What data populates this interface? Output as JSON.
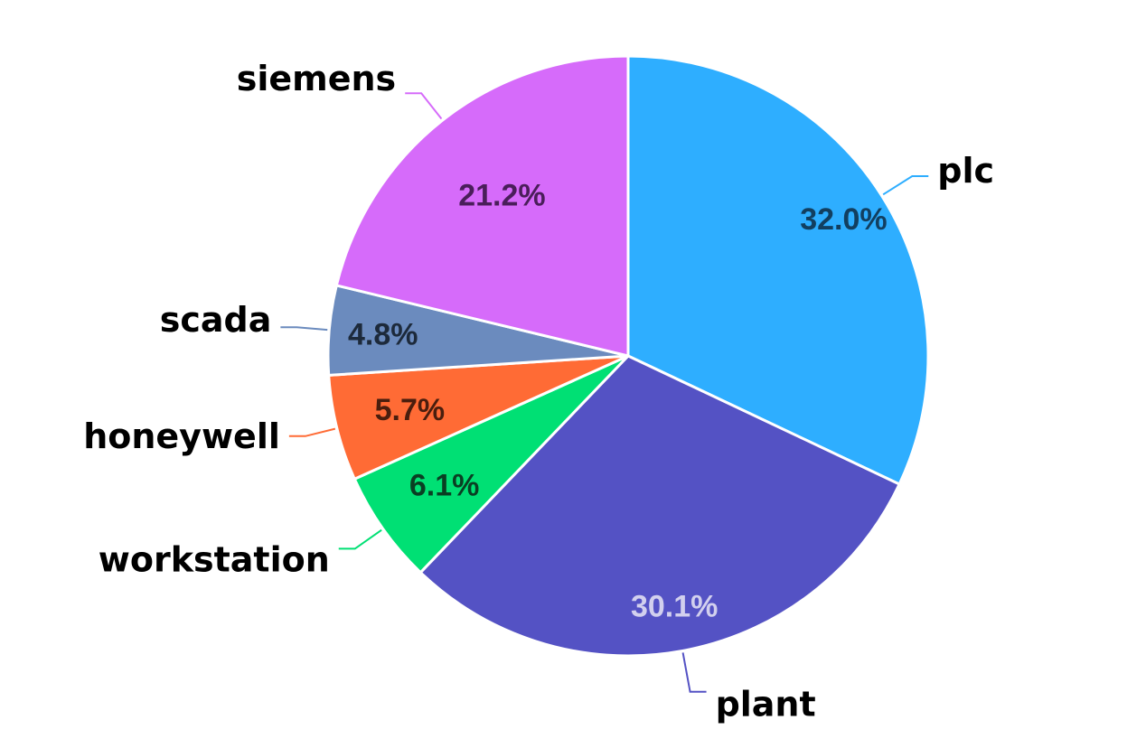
{
  "chart_data": {
    "type": "pie",
    "title": "",
    "categories": [
      "plc",
      "plant",
      "workstation",
      "honeywell",
      "scada",
      "siemens"
    ],
    "values": [
      32.0,
      30.1,
      6.1,
      5.7,
      4.8,
      21.2
    ],
    "value_labels": [
      "32.0%",
      "30.1%",
      "6.1%",
      "5.7%",
      "4.8%",
      "21.2%"
    ],
    "colors": [
      "#2EAEFF",
      "#5452C4",
      "#00E074",
      "#FF6B35",
      "#6B8BBE",
      "#D66BFA"
    ],
    "label_colors": [
      "#123F60",
      "#D2D0EE",
      "#0A3F23",
      "#4A1E0E",
      "#1D2A3B",
      "#4A1E5A"
    ],
    "start_angle": "12 o'clock",
    "direction": "clockwise",
    "legend": "none"
  }
}
